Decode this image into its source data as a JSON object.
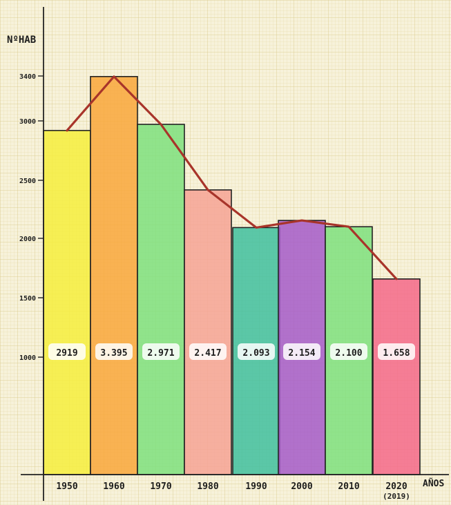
{
  "chart_data": {
    "type": "bar",
    "title": "",
    "ylabel": "NºHAB",
    "xlabel": "AÑOS",
    "categories": [
      "1950",
      "1960",
      "1970",
      "1980",
      "1990",
      "2000",
      "2010",
      "2020"
    ],
    "category_notes": [
      "",
      "",
      "",
      "",
      "",
      "",
      "",
      "(2019)"
    ],
    "values": [
      2919,
      3395,
      2971,
      2417,
      2093,
      2154,
      2100,
      1658
    ],
    "value_labels": [
      "2919",
      "3.395",
      "2.971",
      "2.417",
      "2.093",
      "2.154",
      "2.100",
      "1.658"
    ],
    "ytick_labels": [
      "1000",
      "1500",
      "2000",
      "2500",
      "3000",
      "3400"
    ],
    "yticks": [
      1000,
      1500,
      2000,
      2500,
      3000,
      3400
    ],
    "ylim": [
      0,
      3600
    ],
    "grid": true,
    "overlay_line": true,
    "bar_colors": [
      "#f6ee3c",
      "#f9a73a",
      "#7ee07c",
      "#f6a394",
      "#3fbf9e",
      "#a45ac8",
      "#7ee07c",
      "#f46888"
    ],
    "line_color": "#a8342a",
    "grid_color": "#d9c98a"
  }
}
